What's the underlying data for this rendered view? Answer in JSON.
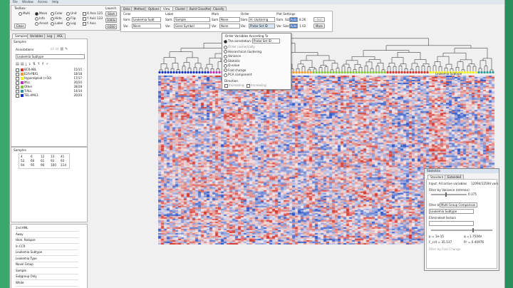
{
  "menu": [
    "File",
    "Window",
    "Access",
    "Help"
  ],
  "toolbox": {
    "title": "Toolbox",
    "radios": [
      [
        "Multi",
        "Move",
        "Color",
        "Unit",
        "X Axis"
      ],
      [
        "Y Axis",
        "Info",
        "Hide",
        "Flip",
        "Y Axis"
      ],
      [
        "",
        "Annot.",
        "Label",
        "Log",
        "Y Axis"
      ]
    ],
    "clear": "Clear",
    "launch": "Launch",
    "launch_buttons": [
      "Start",
      "1000x",
      "GDS0"
    ],
    "values": [
      "125",
      "133"
    ]
  },
  "tabs": [
    "Data",
    "Method",
    "Options",
    "View",
    "Cluster",
    "Build Classifier",
    "Classify"
  ],
  "active_tab": "View",
  "view": {
    "color_label": "Color",
    "label_label": "Label",
    "mark_label": "Mark",
    "order_label": "Order",
    "plot_label": "Plot Settings",
    "sam_label": "Sam.",
    "var_label": "Var.",
    "color_sam": "Leukemia Subt",
    "color_var": "None",
    "label_sam": "Sample",
    "label_var": "Gene Symbol",
    "mark_sam": "None",
    "mark_var": "None",
    "order_sam": "H. clustering",
    "order_var": "Probe Set ID",
    "size_sam": "Sam. Size",
    "size_var": "Var. Size",
    "auto": "Auto",
    "sam_val": "8.26",
    "var_val": "1.02",
    "more": "More",
    "set": "Set"
  },
  "order_popup": {
    "title": "Order Variables According To",
    "selected": "The annotation:",
    "selected_value": "Probe Set ID",
    "items": [
      "Order numerically",
      "Hierarchical clustering",
      "Variance",
      "Statistic",
      "Q-value",
      "Fold change",
      "PCA component"
    ],
    "direction_label": "Direction",
    "increasing": "Increasing",
    "decreasing": "Increasing"
  },
  "left_tabs": [
    "Samples",
    "Variables",
    "Log",
    "HGL"
  ],
  "samples_title": "Samples",
  "annotations": {
    "title": "Annotations",
    "dropdown": "Leukemia Subtype",
    "rows": [
      {
        "name": "BCR-ABL",
        "count": "15/15",
        "color": "#e0302a"
      },
      {
        "name": "E2A-PBX1",
        "count": "18/18",
        "color": "#ff9a2a"
      },
      {
        "name": "Hyperdiploid (>50)",
        "count": "17/17",
        "color": "#f2f20e"
      },
      {
        "name": "MLL",
        "count": "20/20",
        "color": "#c030c0"
      },
      {
        "name": "Other",
        "count": "28/28",
        "color": "#80c83a"
      },
      {
        "name": "T-ALL",
        "count": "14/14",
        "color": "#2a9a9a"
      },
      {
        "name": "TEL-AML1",
        "count": "20/20",
        "color": "#1030d0"
      }
    ]
  },
  "samples_box": {
    "title": "Samples",
    "rows": [
      [
        "4",
        "6",
        "12",
        "13",
        "41"
      ],
      [
        "52",
        "60",
        "61",
        "92",
        "93"
      ],
      [
        "94",
        "95",
        "96",
        "100",
        "114"
      ]
    ]
  },
  "sample_list": [
    "2nd AML",
    "Away",
    "Hem. Relapse",
    "In CCR",
    "Leukemia Subtype",
    "Leukemia Type",
    "Novel Group",
    "Sample",
    "Subgroup Only",
    "White"
  ],
  "legend_label": "Leukemia Subtype",
  "stats": {
    "title": "Statistics",
    "tabs": [
      "Standard",
      "Extended"
    ],
    "input": "Input: All active variables",
    "count": "12094/12594 vars",
    "filter_variance": "Filter by Variance (σ/σmax)",
    "variance_val": "0.375",
    "filter_by": "Filter by",
    "filter_by_val": "Multi Group Comparison",
    "group": "Leukemia Subtype",
    "eliminated": "Eliminated factors",
    "p_label": "p =",
    "p_val": "1e-15",
    "q_label": "q =",
    "q_val": "1.7504e",
    "fcrit": "F_crit = 35.137",
    "r2": "R² = 0.40976",
    "fold": "Filter by Fold Change"
  },
  "chart_data": {
    "type": "heatmap",
    "title": "",
    "group_order": [
      "#1030d0",
      "#c030c0",
      "#ff9a2a",
      "#80c83a",
      "#e0302a",
      "#f2f20e",
      "#2a9a9a"
    ],
    "colors": {
      "high": "#d63a2e",
      "low": "#3257c4",
      "mid": "#f4ecec"
    }
  }
}
